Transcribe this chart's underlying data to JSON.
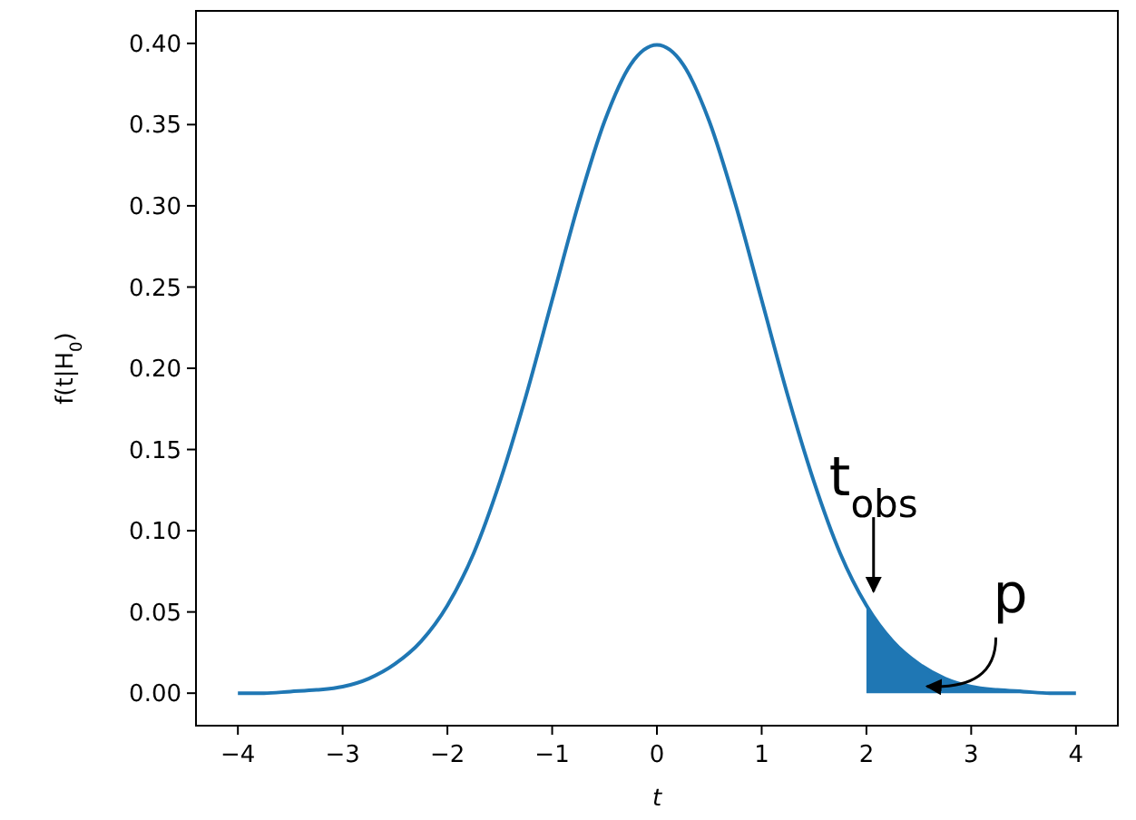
{
  "chart_data": {
    "type": "line",
    "xlabel": "t",
    "ylabel": "f(t|H$_{0}$)",
    "xlim": [
      -4.4,
      4.4
    ],
    "ylim": [
      -0.02,
      0.42
    ],
    "xticks": [
      {
        "value": -4,
        "label": "−4"
      },
      {
        "value": -3,
        "label": "−3"
      },
      {
        "value": -2,
        "label": "−2"
      },
      {
        "value": -1,
        "label": "−1"
      },
      0,
      1,
      2,
      3,
      4
    ],
    "yticks": [
      {
        "value": 0,
        "label": "0.00"
      },
      {
        "value": 0.05,
        "label": "0.05"
      },
      {
        "value": 0.1,
        "label": "0.10"
      },
      {
        "value": 0.15,
        "label": "0.15"
      },
      {
        "value": 0.2,
        "label": "0.20"
      },
      {
        "value": 0.25,
        "label": "0.25"
      },
      {
        "value": 0.3,
        "label": "0.30"
      },
      {
        "value": 0.35,
        "label": "0.35"
      },
      {
        "value": 0.4,
        "label": "0.40"
      }
    ],
    "marker": "none",
    "line_style": "solid",
    "series": [
      {
        "color": "#1f77b4",
        "x": [
          -4,
          -3.75,
          -3.5,
          -3.25,
          -3,
          -2.75,
          -2.5,
          -2.25,
          -2,
          -1.75,
          -1.5,
          -1.25,
          -1,
          -0.75,
          -0.5,
          -0.25,
          0,
          0.25,
          0.5,
          0.75,
          1,
          1.25,
          1.5,
          1.75,
          2,
          2.25,
          2.5,
          2.75,
          3,
          3.25,
          3.5,
          3.75,
          4
        ],
        "values": [
          0.0,
          0.0,
          0.001,
          0.002,
          0.004,
          0.009,
          0.018,
          0.032,
          0.054,
          0.086,
          0.13,
          0.183,
          0.242,
          0.301,
          0.352,
          0.387,
          0.399,
          0.387,
          0.352,
          0.301,
          0.242,
          0.183,
          0.13,
          0.086,
          0.054,
          0.032,
          0.018,
          0.009,
          0.004,
          0.002,
          0.001,
          0.0,
          0.0
        ]
      },
      {
        "type": "area",
        "color": "#1f77b4",
        "x": [
          2,
          2.25,
          2.5,
          2.75,
          3,
          3.25,
          3.5,
          3.75,
          4
        ],
        "values": [
          0.054,
          0.032,
          0.018,
          0.009,
          0.004,
          0.002,
          0.001,
          0.0,
          0.0
        ]
      }
    ],
    "annotations": [
      "t$_{obs}$",
      "p"
    ]
  }
}
